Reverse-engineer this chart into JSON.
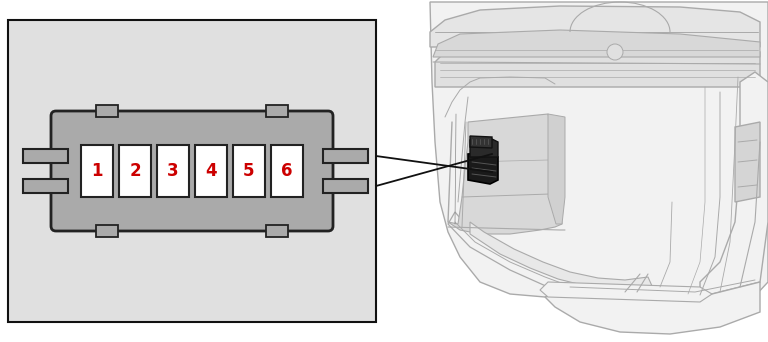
{
  "bg_color": "#ffffff",
  "left_panel_bg": "#e0e0e0",
  "fuse_box_body_color": "#aaaaaa",
  "fuse_box_outline": "#222222",
  "fuse_cell_bg": "#ffffff",
  "fuse_cell_outline": "#222222",
  "fuse_number_color": "#cc0000",
  "fuse_labels": [
    "1",
    "2",
    "3",
    "4",
    "5",
    "6"
  ],
  "connector_line_color": "#111111",
  "panel_border_color": "#111111",
  "car_line_color": "#aaaaaa",
  "car_fill_color": "#f2f2f2",
  "car_dark_fill": "#cccccc",
  "fuse_on_car_color": "#1a1a1a",
  "fuse_on_car_detail": "#333333"
}
